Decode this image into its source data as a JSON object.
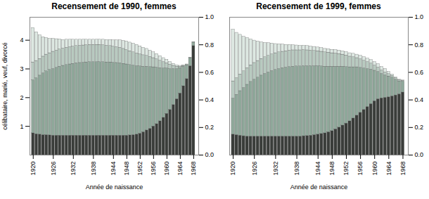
{
  "chart_data": [
    {
      "type": "bar",
      "stacked": true,
      "title": "Recensement de 1990, femmes",
      "xlabel": "Année de naissance",
      "ylabel": "célibataire, marié, veuf, divorcé",
      "x": [
        1920,
        1921,
        1922,
        1923,
        1924,
        1925,
        1926,
        1927,
        1928,
        1929,
        1930,
        1931,
        1932,
        1933,
        1934,
        1935,
        1936,
        1937,
        1938,
        1939,
        1940,
        1941,
        1942,
        1943,
        1944,
        1945,
        1946,
        1947,
        1948,
        1949,
        1950,
        1951,
        1952,
        1953,
        1954,
        1955,
        1956,
        1957,
        1958,
        1959,
        1960,
        1961,
        1962,
        1963,
        1964,
        1965,
        1966,
        1967,
        1968
      ],
      "xlim": [
        1919.0,
        1969.5
      ],
      "xticks": [
        1920,
        1926,
        1932,
        1938,
        1944,
        1948,
        1952,
        1956,
        1960,
        1964,
        1968
      ],
      "ylim": [
        0,
        4.8
      ],
      "yticks": [
        1,
        2,
        3,
        4
      ],
      "y2lim": [
        0,
        1.0
      ],
      "y2ticks": [
        {
          "value": 0.0,
          "label": "0.0"
        },
        {
          "value": 0.2,
          "label": "0.2"
        },
        {
          "value": 0.4,
          "label": "0.4"
        },
        {
          "value": 0.6,
          "label": "0.6"
        },
        {
          "value": 0.8,
          "label": "0.8"
        },
        {
          "value": 1.0,
          "label": "1.0"
        }
      ],
      "series": [
        {
          "color": "#3a3d3a",
          "values": [
            0.76,
            0.73,
            0.72,
            0.7,
            0.7,
            0.69,
            0.68,
            0.68,
            0.68,
            0.68,
            0.68,
            0.68,
            0.68,
            0.68,
            0.68,
            0.68,
            0.68,
            0.68,
            0.68,
            0.68,
            0.68,
            0.68,
            0.68,
            0.68,
            0.68,
            0.68,
            0.68,
            0.68,
            0.68,
            0.69,
            0.7,
            0.72,
            0.75,
            0.8,
            0.86,
            0.92,
            1.0,
            1.08,
            1.18,
            1.3,
            1.44,
            1.58,
            1.75,
            1.95,
            2.15,
            2.4,
            2.65,
            3.1,
            3.8
          ]
        },
        {
          "color": "#8fa89a",
          "values": [
            1.85,
            1.95,
            2.05,
            2.15,
            2.22,
            2.28,
            2.32,
            2.36,
            2.4,
            2.43,
            2.46,
            2.48,
            2.5,
            2.52,
            2.53,
            2.54,
            2.55,
            2.56,
            2.56,
            2.56,
            2.56,
            2.56,
            2.55,
            2.55,
            2.54,
            2.53,
            2.52,
            2.5,
            2.48,
            2.45,
            2.42,
            2.38,
            2.34,
            2.28,
            2.22,
            2.15,
            2.06,
            1.97,
            1.85,
            1.72,
            1.58,
            1.42,
            1.25,
            1.05,
            0.88,
            0.68,
            0.48,
            0.28,
            0.12
          ]
        },
        {
          "color": "#b8cac0",
          "values": [
            0.62,
            0.6,
            0.58,
            0.58,
            0.58,
            0.58,
            0.6,
            0.6,
            0.6,
            0.6,
            0.6,
            0.6,
            0.6,
            0.6,
            0.6,
            0.6,
            0.6,
            0.6,
            0.6,
            0.6,
            0.6,
            0.59,
            0.58,
            0.57,
            0.56,
            0.55,
            0.54,
            0.52,
            0.5,
            0.48,
            0.46,
            0.44,
            0.42,
            0.4,
            0.38,
            0.35,
            0.32,
            0.29,
            0.26,
            0.22,
            0.18,
            0.15,
            0.11,
            0.08,
            0.05,
            0.03,
            0.02,
            0.01,
            0.01
          ]
        },
        {
          "color": "#dde8e2",
          "values": [
            1.2,
            1.0,
            0.82,
            0.68,
            0.58,
            0.5,
            0.45,
            0.4,
            0.35,
            0.3,
            0.28,
            0.26,
            0.24,
            0.22,
            0.21,
            0.2,
            0.19,
            0.18,
            0.18,
            0.18,
            0.18,
            0.19,
            0.2,
            0.21,
            0.22,
            0.24,
            0.26,
            0.28,
            0.3,
            0.3,
            0.3,
            0.3,
            0.28,
            0.26,
            0.24,
            0.22,
            0.2,
            0.18,
            0.16,
            0.14,
            0.12,
            0.09,
            0.07,
            0.05,
            0.03,
            0.02,
            0.01,
            0.0,
            0.0
          ]
        }
      ]
    },
    {
      "type": "bar",
      "stacked": true,
      "title": "Recensement de 1999, femmes",
      "xlabel": "Année de naissance",
      "x": [
        1920,
        1921,
        1922,
        1923,
        1924,
        1925,
        1926,
        1927,
        1928,
        1929,
        1930,
        1931,
        1932,
        1933,
        1934,
        1935,
        1936,
        1937,
        1938,
        1939,
        1940,
        1941,
        1942,
        1943,
        1944,
        1945,
        1946,
        1947,
        1948,
        1949,
        1950,
        1951,
        1952,
        1953,
        1954,
        1955,
        1956,
        1957,
        1958,
        1959,
        1960,
        1961,
        1962,
        1963,
        1964,
        1965,
        1966,
        1967,
        1968
      ],
      "xlim": [
        1919.0,
        1969.5
      ],
      "xticks": [
        1920,
        1926,
        1932,
        1938,
        1944,
        1948,
        1952,
        1956,
        1960,
        1964,
        1968
      ],
      "ylim": [
        0,
        4.8
      ],
      "y2lim": [
        0,
        1.0
      ],
      "y2ticks": [
        {
          "value": 0.0,
          "label": "0.0"
        },
        {
          "value": 0.2,
          "label": "0.2"
        },
        {
          "value": 0.4,
          "label": "0.4"
        },
        {
          "value": 0.6,
          "label": "0.6"
        },
        {
          "value": 0.8,
          "label": "0.8"
        },
        {
          "value": 1.0,
          "label": "1.0"
        }
      ],
      "series": [
        {
          "color": "#3a3d3a",
          "values": [
            0.72,
            0.7,
            0.68,
            0.66,
            0.65,
            0.65,
            0.65,
            0.65,
            0.65,
            0.65,
            0.65,
            0.65,
            0.65,
            0.65,
            0.65,
            0.65,
            0.65,
            0.65,
            0.65,
            0.65,
            0.66,
            0.67,
            0.68,
            0.7,
            0.72,
            0.74,
            0.76,
            0.8,
            0.84,
            0.9,
            0.96,
            1.03,
            1.1,
            1.18,
            1.28,
            1.38,
            1.48,
            1.58,
            1.68,
            1.78,
            1.88,
            1.95,
            1.98,
            2.0,
            2.02,
            2.05,
            2.08,
            2.12,
            2.18
          ]
        },
        {
          "color": "#8fa89a",
          "values": [
            1.25,
            1.4,
            1.55,
            1.68,
            1.8,
            1.9,
            1.98,
            2.05,
            2.12,
            2.18,
            2.23,
            2.28,
            2.32,
            2.35,
            2.38,
            2.4,
            2.42,
            2.43,
            2.44,
            2.44,
            2.44,
            2.43,
            2.42,
            2.4,
            2.38,
            2.35,
            2.32,
            2.28,
            2.24,
            2.18,
            2.12,
            2.05,
            1.97,
            1.88,
            1.78,
            1.68,
            1.56,
            1.44,
            1.32,
            1.2,
            1.06,
            0.95,
            0.85,
            0.78,
            0.72,
            0.65,
            0.55,
            0.45,
            0.38
          ]
        },
        {
          "color": "#b8cac0",
          "values": [
            0.6,
            0.58,
            0.58,
            0.58,
            0.58,
            0.58,
            0.58,
            0.58,
            0.58,
            0.58,
            0.58,
            0.58,
            0.58,
            0.58,
            0.57,
            0.57,
            0.57,
            0.57,
            0.56,
            0.56,
            0.56,
            0.55,
            0.54,
            0.53,
            0.52,
            0.51,
            0.5,
            0.49,
            0.47,
            0.46,
            0.44,
            0.42,
            0.4,
            0.37,
            0.35,
            0.32,
            0.3,
            0.27,
            0.24,
            0.21,
            0.18,
            0.15,
            0.12,
            0.1,
            0.08,
            0.06,
            0.05,
            0.04,
            0.03
          ]
        },
        {
          "color": "#dde8e2",
          "values": [
            1.8,
            1.58,
            1.38,
            1.2,
            1.05,
            0.9,
            0.78,
            0.68,
            0.58,
            0.5,
            0.44,
            0.38,
            0.32,
            0.28,
            0.25,
            0.22,
            0.2,
            0.18,
            0.17,
            0.16,
            0.15,
            0.15,
            0.14,
            0.14,
            0.13,
            0.13,
            0.12,
            0.12,
            0.12,
            0.12,
            0.12,
            0.12,
            0.12,
            0.12,
            0.12,
            0.12,
            0.12,
            0.12,
            0.12,
            0.12,
            0.12,
            0.12,
            0.12,
            0.12,
            0.08,
            0.05,
            0.03,
            0.02,
            0.01
          ]
        }
      ]
    }
  ]
}
